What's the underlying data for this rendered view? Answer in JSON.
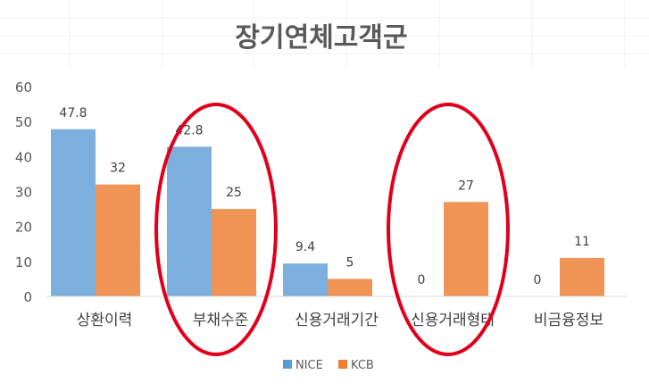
{
  "chart_data": {
    "type": "bar",
    "title": "장기연체고객군",
    "categories": [
      "상환이력",
      "부채수준",
      "신용거래기간",
      "신용거래형태",
      "비금융정보"
    ],
    "series": [
      {
        "name": "NICE",
        "values": [
          47.8,
          42.8,
          9.4,
          0,
          null
        ],
        "labels": [
          "47.8",
          "42.8",
          "9.4",
          "0",
          "0"
        ],
        "color": "#5b9bd5"
      },
      {
        "name": "KCB",
        "values": [
          32,
          25,
          5,
          27,
          11
        ],
        "labels": [
          "32",
          "25",
          "5",
          "27",
          "11"
        ],
        "color": "#ed7d31"
      }
    ],
    "yticks": [
      "0",
      "10",
      "20",
      "30",
      "40",
      "50",
      "60"
    ],
    "ylim": [
      0,
      60
    ],
    "grid": false,
    "legend": "bottom",
    "annotations": {
      "highlight_color": "#e0001b",
      "highlighted_categories": [
        "부채수준",
        "신용거래형태"
      ]
    }
  }
}
